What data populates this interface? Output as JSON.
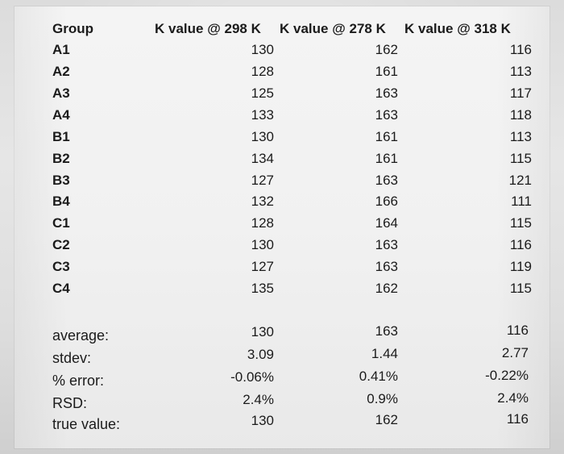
{
  "table": {
    "columns": [
      "Group",
      "K value @ 298 K",
      "K value @ 278 K",
      "K value @ 318 K"
    ],
    "rows": [
      [
        "A1",
        "130",
        "162",
        "116"
      ],
      [
        "A2",
        "128",
        "161",
        "113"
      ],
      [
        "A3",
        "125",
        "163",
        "117"
      ],
      [
        "A4",
        "133",
        "163",
        "118"
      ],
      [
        "B1",
        "130",
        "161",
        "113"
      ],
      [
        "B2",
        "134",
        "161",
        "115"
      ],
      [
        "B3",
        "127",
        "163",
        "121"
      ],
      [
        "B4",
        "132",
        "166",
        "111"
      ],
      [
        "C1",
        "128",
        "164",
        "115"
      ],
      [
        "C2",
        "130",
        "163",
        "116"
      ],
      [
        "C3",
        "127",
        "163",
        "119"
      ],
      [
        "C4",
        "135",
        "162",
        "115"
      ]
    ],
    "summary": [
      [
        "average:",
        "130",
        "163",
        "116"
      ],
      [
        "stdev:",
        "3.09",
        "1.44",
        "2.77"
      ],
      [
        "% error:",
        "-0.06%",
        "0.41%",
        "-0.22%"
      ],
      [
        "RSD:",
        "2.4%",
        "0.9%",
        "2.4%"
      ],
      [
        "true value:",
        "130",
        "162",
        "116"
      ]
    ]
  }
}
